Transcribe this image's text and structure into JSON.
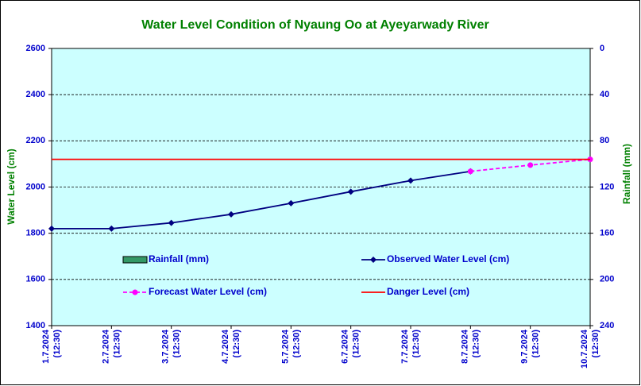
{
  "chart_data": {
    "type": "line",
    "title": "Water Level Condition of Nyaung Oo at Ayeyarwady River",
    "y_label": "Water Level (cm)",
    "y2_label": "Rainfall (mm)",
    "categories": [
      "1.7.2024 (12:30)",
      "2.7.2024 (12:30)",
      "3.7.2024 (12:30)",
      "4.7.2024 (12:30)",
      "5.7.2024 (12:30)",
      "6.7.2024 (12:30)",
      "7.7.2024 (12:30)",
      "8.7.2024 (12:30)",
      "9.7.2024 (12:30)",
      "10.7.2024 (12:30)"
    ],
    "series": [
      {
        "name": "Rainfall (mm)",
        "type": "bar",
        "axis": "y2",
        "color": "#339966",
        "values": [
          null,
          null,
          null,
          null,
          null,
          null,
          null,
          null,
          null,
          null
        ]
      },
      {
        "name": "Observed Water Level (cm)",
        "type": "line",
        "color": "#000080",
        "marker": "diamond",
        "line_style": "solid",
        "values": [
          1820,
          1820,
          1845,
          1882,
          1930,
          1980,
          2028,
          2068,
          null,
          null
        ]
      },
      {
        "name": "Forecast Water Level (cm)",
        "type": "line",
        "color": "#ff00ff",
        "marker": "circle",
        "line_style": "dashed",
        "values": [
          null,
          null,
          null,
          null,
          null,
          null,
          null,
          2068,
          2095,
          2120
        ]
      },
      {
        "name": "Danger Level (cm)",
        "type": "line",
        "color": "#ff0000",
        "marker": "none",
        "line_style": "solid",
        "values": [
          2120,
          2120,
          2120,
          2120,
          2120,
          2120,
          2120,
          2120,
          2120,
          2120
        ]
      }
    ],
    "ylim": [
      1400,
      2600
    ],
    "yticks": [
      1400,
      1600,
      1800,
      2000,
      2200,
      2400,
      2600
    ],
    "y2lim": [
      240,
      0
    ],
    "y2ticks": [
      0,
      40,
      80,
      120,
      160,
      200,
      240
    ],
    "grid": true,
    "plot_background": "#ccffff"
  }
}
